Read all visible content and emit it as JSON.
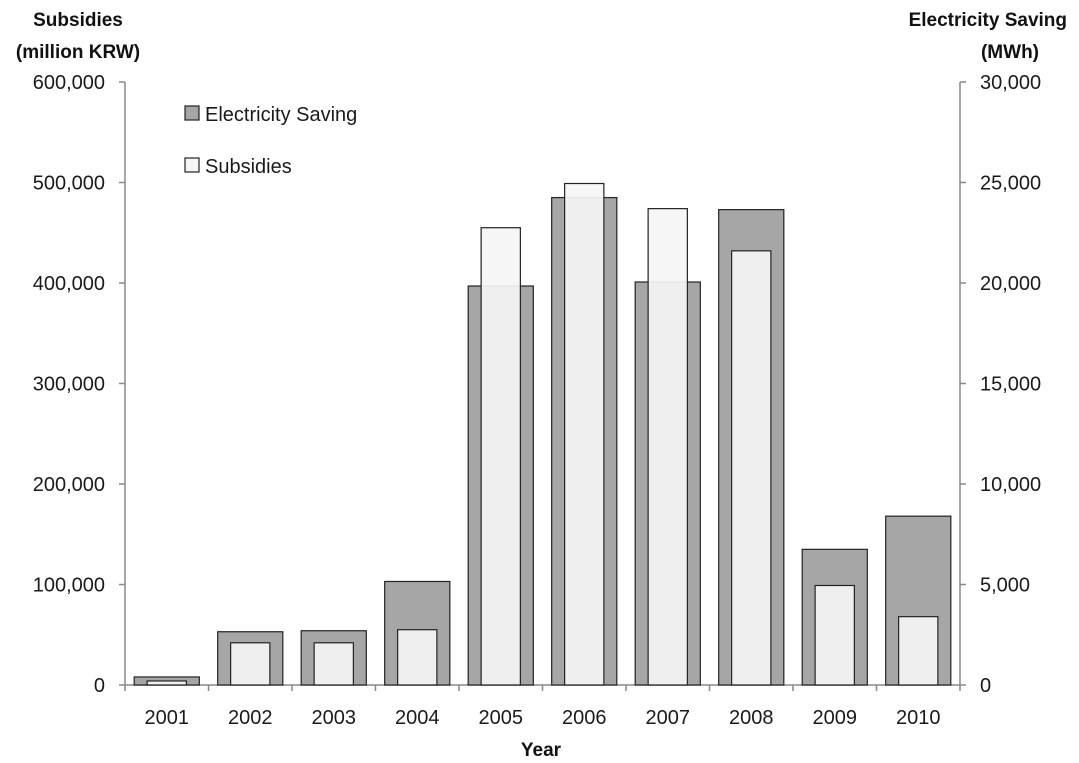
{
  "chart_data": {
    "type": "bar",
    "categories": [
      "2001",
      "2002",
      "2003",
      "2004",
      "2005",
      "2006",
      "2007",
      "2008",
      "2009",
      "2010"
    ],
    "xlabel": "Year",
    "y_left_label": [
      "Subsidies",
      "(million KRW)"
    ],
    "y_right_label": [
      "Electricity Saving",
      "(MWh)"
    ],
    "y_left_lim": [
      0,
      600000
    ],
    "y_right_lim": [
      0,
      30000
    ],
    "y_left_ticks": [
      "0",
      "100,000",
      "200,000",
      "300,000",
      "400,000",
      "500,000",
      "600,000"
    ],
    "y_right_ticks": [
      "0",
      "5,000",
      "10,000",
      "15,000",
      "20,000",
      "25,000",
      "30,000"
    ],
    "grid": false,
    "legend_position": "top-left",
    "series": [
      {
        "name": "Electricity Saving",
        "axis": "right",
        "color": "#a6a6a6",
        "values": [
          400,
          2650,
          2700,
          5150,
          19850,
          24250,
          20050,
          23650,
          6750,
          8400
        ]
      },
      {
        "name": "Subsidies",
        "axis": "left",
        "color": "#f5f5f5",
        "values": [
          4000,
          42000,
          42000,
          55000,
          455000,
          499000,
          474000,
          432000,
          99000,
          68000
        ]
      }
    ]
  }
}
